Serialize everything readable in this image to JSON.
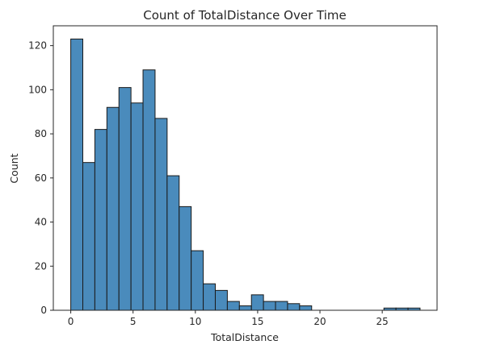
{
  "chart_data": {
    "type": "bar",
    "title": "Count of TotalDistance Over Time",
    "xlabel": "TotalDistance",
    "ylabel": "Count",
    "bin_width": 0.9667,
    "x_start": 0,
    "values": [
      123,
      67,
      82,
      92,
      101,
      94,
      109,
      87,
      61,
      47,
      27,
      12,
      9,
      4,
      2,
      7,
      4,
      4,
      3,
      2,
      0,
      0,
      0,
      0,
      0,
      0,
      1,
      1,
      1
    ],
    "xlim": [
      -1.4,
      29.4
    ],
    "ylim": [
      0,
      129
    ],
    "xticks": [
      0,
      5,
      10,
      15,
      20,
      25
    ],
    "yticks": [
      0,
      20,
      40,
      60,
      80,
      100,
      120
    ],
    "bar_color": "#4a8bbc",
    "edge_color": "#1a1a1a",
    "grid": false,
    "legend": "none"
  }
}
